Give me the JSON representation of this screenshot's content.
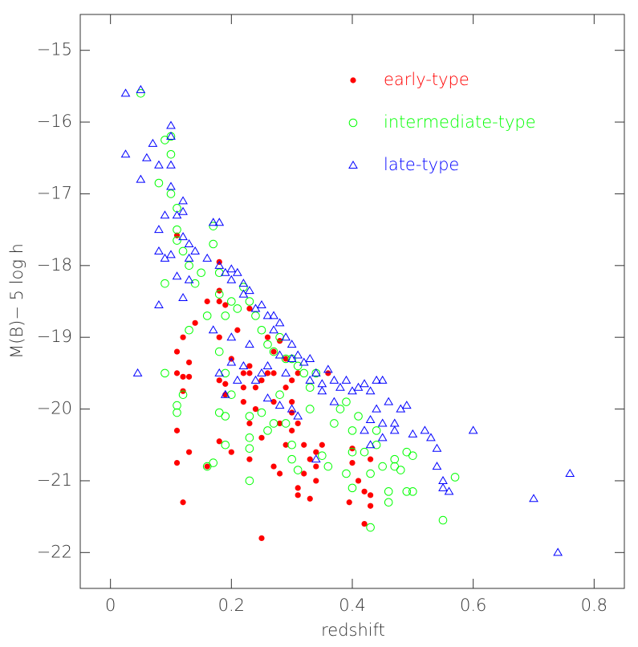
{
  "chart_data": {
    "type": "scatter",
    "xlabel": "redshift",
    "ylabel": "M(B)− 5 log h",
    "xlim": [
      -0.05,
      0.85
    ],
    "ylim": [
      -22.5,
      -14.5
    ],
    "xticks": [
      0,
      0.2,
      0.4,
      0.6,
      0.8
    ],
    "yticks": [
      {
        "value": -22,
        "label": "−22"
      },
      {
        "value": -21,
        "label": "−21"
      },
      {
        "value": -20,
        "label": "−20"
      },
      {
        "value": -19,
        "label": "−19"
      },
      {
        "value": -18,
        "label": "−18"
      },
      {
        "value": -17,
        "label": "−17"
      },
      {
        "value": -16,
        "label": "−16"
      },
      {
        "value": -15,
        "label": "−15"
      }
    ],
    "legend": "upper right",
    "series": [
      {
        "name": "early-type",
        "color": "#ff0000",
        "marker": "filled-circle",
        "x": [
          0.11,
          0.12,
          0.11,
          0.11,
          0.12,
          0.13,
          0.13,
          0.12,
          0.11,
          0.11,
          0.13,
          0.12,
          0.14,
          0.16,
          0.16,
          0.18,
          0.18,
          0.18,
          0.18,
          0.18,
          0.19,
          0.18,
          0.19,
          0.2,
          0.19,
          0.21,
          0.22,
          0.22,
          0.23,
          0.23,
          0.23,
          0.23,
          0.23,
          0.24,
          0.24,
          0.25,
          0.25,
          0.26,
          0.26,
          0.27,
          0.27,
          0.27,
          0.27,
          0.28,
          0.28,
          0.28,
          0.29,
          0.29,
          0.3,
          0.3,
          0.3,
          0.3,
          0.31,
          0.31,
          0.31,
          0.31,
          0.32,
          0.32,
          0.33,
          0.34,
          0.35,
          0.34,
          0.34,
          0.36,
          0.4,
          0.4,
          0.42,
          0.43,
          0.43,
          0.43,
          0.41,
          0.25,
          0.33,
          0.395,
          0.42,
          0.22,
          0.2,
          0.29
        ],
        "values": [
          -17.58,
          -19.0,
          -19.2,
          -19.5,
          -19.55,
          -19.55,
          -19.35,
          -19.75,
          -20.3,
          -20.75,
          -20.6,
          -21.3,
          -18.8,
          -18.5,
          -20.8,
          -17.95,
          -18.35,
          -18.5,
          -19.0,
          -19.6,
          -19.65,
          -20.45,
          -18.55,
          -19.3,
          -19.8,
          -18.9,
          -19.5,
          -19.9,
          -18.6,
          -19.4,
          -19.5,
          -20.2,
          -20.7,
          -19.7,
          -20.0,
          -19.6,
          -20.4,
          -19.0,
          -19.5,
          -19.2,
          -19.5,
          -19.9,
          -20.8,
          -19.05,
          -20.2,
          -20.9,
          -19.7,
          -20.5,
          -19.6,
          -19.9,
          -20.05,
          -20.3,
          -19.5,
          -20.2,
          -21.1,
          -21.2,
          -20.5,
          -20.9,
          -20.7,
          -20.6,
          -20.5,
          -20.8,
          -21.0,
          -19.5,
          -20.55,
          -20.75,
          -21.15,
          -21.35,
          -21.2,
          -20.7,
          -21.0,
          -21.8,
          -21.25,
          -21.3,
          -21.6,
          -19.7,
          -20.6,
          -19.3
        ]
      },
      {
        "name": "intermediate-type",
        "color": "#00ff00",
        "marker": "open-circle",
        "x": [
          0.05,
          0.09,
          0.1,
          0.1,
          0.08,
          0.1,
          0.11,
          0.11,
          0.11,
          0.09,
          0.12,
          0.13,
          0.14,
          0.15,
          0.17,
          0.17,
          0.18,
          0.18,
          0.19,
          0.16,
          0.2,
          0.21,
          0.22,
          0.23,
          0.24,
          0.25,
          0.26,
          0.27,
          0.28,
          0.29,
          0.3,
          0.31,
          0.32,
          0.33,
          0.34,
          0.09,
          0.11,
          0.11,
          0.12,
          0.13,
          0.16,
          0.17,
          0.18,
          0.19,
          0.19,
          0.18,
          0.19,
          0.2,
          0.23,
          0.23,
          0.23,
          0.23,
          0.25,
          0.26,
          0.27,
          0.28,
          0.29,
          0.3,
          0.3,
          0.31,
          0.33,
          0.35,
          0.36,
          0.37,
          0.38,
          0.39,
          0.4,
          0.41,
          0.4,
          0.42,
          0.43,
          0.44,
          0.44,
          0.45,
          0.46,
          0.46,
          0.47,
          0.48,
          0.49,
          0.49,
          0.5,
          0.5,
          0.55,
          0.57,
          0.43,
          0.39,
          0.4,
          0.47
        ],
        "values": [
          -15.6,
          -16.25,
          -16.2,
          -16.45,
          -16.85,
          -17.0,
          -17.2,
          -17.5,
          -17.65,
          -18.25,
          -17.8,
          -18.0,
          -18.25,
          -18.1,
          -17.45,
          -17.7,
          -18.1,
          -18.4,
          -18.7,
          -18.7,
          -18.5,
          -18.6,
          -18.3,
          -18.5,
          -18.7,
          -18.9,
          -19.1,
          -19.2,
          -19.0,
          -19.3,
          -19.3,
          -19.4,
          -19.5,
          -19.7,
          -19.5,
          -19.5,
          -19.95,
          -20.05,
          -19.8,
          -18.9,
          -20.8,
          -20.75,
          -20.05,
          -20.1,
          -20.5,
          -19.2,
          -19.5,
          -19.8,
          -20.1,
          -20.4,
          -20.55,
          -21.0,
          -20.05,
          -20.3,
          -20.2,
          -19.8,
          -20.2,
          -20.5,
          -20.7,
          -20.85,
          -20.0,
          -20.65,
          -20.8,
          -20.2,
          -20.0,
          -19.9,
          -20.3,
          -20.1,
          -21.1,
          -20.6,
          -20.9,
          -20.3,
          -20.5,
          -20.8,
          -21.15,
          -21.3,
          -20.7,
          -20.85,
          -20.6,
          -21.15,
          -20.65,
          -21.15,
          -21.55,
          -20.95,
          -21.65,
          -20.9,
          -20.6,
          -20.8
        ]
      },
      {
        "name": "late-type",
        "color": "#0000ff",
        "marker": "open-triangle",
        "x": [
          0.025,
          0.05,
          0.025,
          0.06,
          0.07,
          0.05,
          0.08,
          0.1,
          0.1,
          0.1,
          0.1,
          0.09,
          0.08,
          0.08,
          0.09,
          0.1,
          0.11,
          0.12,
          0.12,
          0.12,
          0.13,
          0.13,
          0.14,
          0.11,
          0.13,
          0.08,
          0.12,
          0.045,
          0.17,
          0.18,
          0.16,
          0.18,
          0.19,
          0.2,
          0.2,
          0.21,
          0.22,
          0.22,
          0.23,
          0.24,
          0.25,
          0.26,
          0.27,
          0.27,
          0.28,
          0.29,
          0.3,
          0.3,
          0.31,
          0.32,
          0.33,
          0.33,
          0.34,
          0.35,
          0.36,
          0.37,
          0.38,
          0.39,
          0.4,
          0.41,
          0.42,
          0.43,
          0.44,
          0.45,
          0.46,
          0.47,
          0.48,
          0.49,
          0.44,
          0.43,
          0.42,
          0.43,
          0.45,
          0.45,
          0.47,
          0.5,
          0.52,
          0.53,
          0.54,
          0.55,
          0.55,
          0.56,
          0.54,
          0.6,
          0.7,
          0.74,
          0.76,
          0.17,
          0.18,
          0.2,
          0.22,
          0.24,
          0.26,
          0.28,
          0.3,
          0.31,
          0.29,
          0.25,
          0.21,
          0.19,
          0.2,
          0.23,
          0.26,
          0.28,
          0.35,
          0.34,
          0.37
        ],
        "values": [
          -15.6,
          -15.55,
          -16.45,
          -16.5,
          -16.3,
          -16.8,
          -16.6,
          -16.05,
          -16.2,
          -16.6,
          -16.9,
          -17.3,
          -17.5,
          -17.8,
          -17.9,
          -17.85,
          -17.3,
          -17.1,
          -17.25,
          -17.6,
          -17.7,
          -17.9,
          -17.8,
          -18.15,
          -18.2,
          -18.55,
          -18.45,
          -19.5,
          -17.4,
          -17.4,
          -17.9,
          -18.0,
          -18.1,
          -18.05,
          -18.2,
          -18.1,
          -18.25,
          -18.4,
          -18.35,
          -18.6,
          -18.55,
          -18.7,
          -18.7,
          -18.9,
          -18.8,
          -19.0,
          -19.1,
          -19.3,
          -19.25,
          -19.35,
          -19.3,
          -19.6,
          -19.5,
          -19.65,
          -19.45,
          -19.6,
          -19.7,
          -19.6,
          -19.75,
          -19.7,
          -19.65,
          -19.75,
          -19.6,
          -19.6,
          -19.9,
          -20.2,
          -20.0,
          -19.95,
          -20.0,
          -20.15,
          -20.3,
          -20.5,
          -20.2,
          -20.4,
          -20.3,
          -20.35,
          -20.3,
          -20.4,
          -20.55,
          -21.0,
          -21.1,
          -21.15,
          -20.8,
          -20.3,
          -21.25,
          -22.0,
          -20.9,
          -18.9,
          -19.5,
          -19.35,
          -19.4,
          -19.6,
          -19.85,
          -19.95,
          -20.0,
          -20.1,
          -19.5,
          -19.5,
          -19.6,
          -19.8,
          -19.0,
          -19.1,
          -19.4,
          -19.25,
          -19.75,
          -20.7,
          -19.9
        ]
      }
    ]
  }
}
